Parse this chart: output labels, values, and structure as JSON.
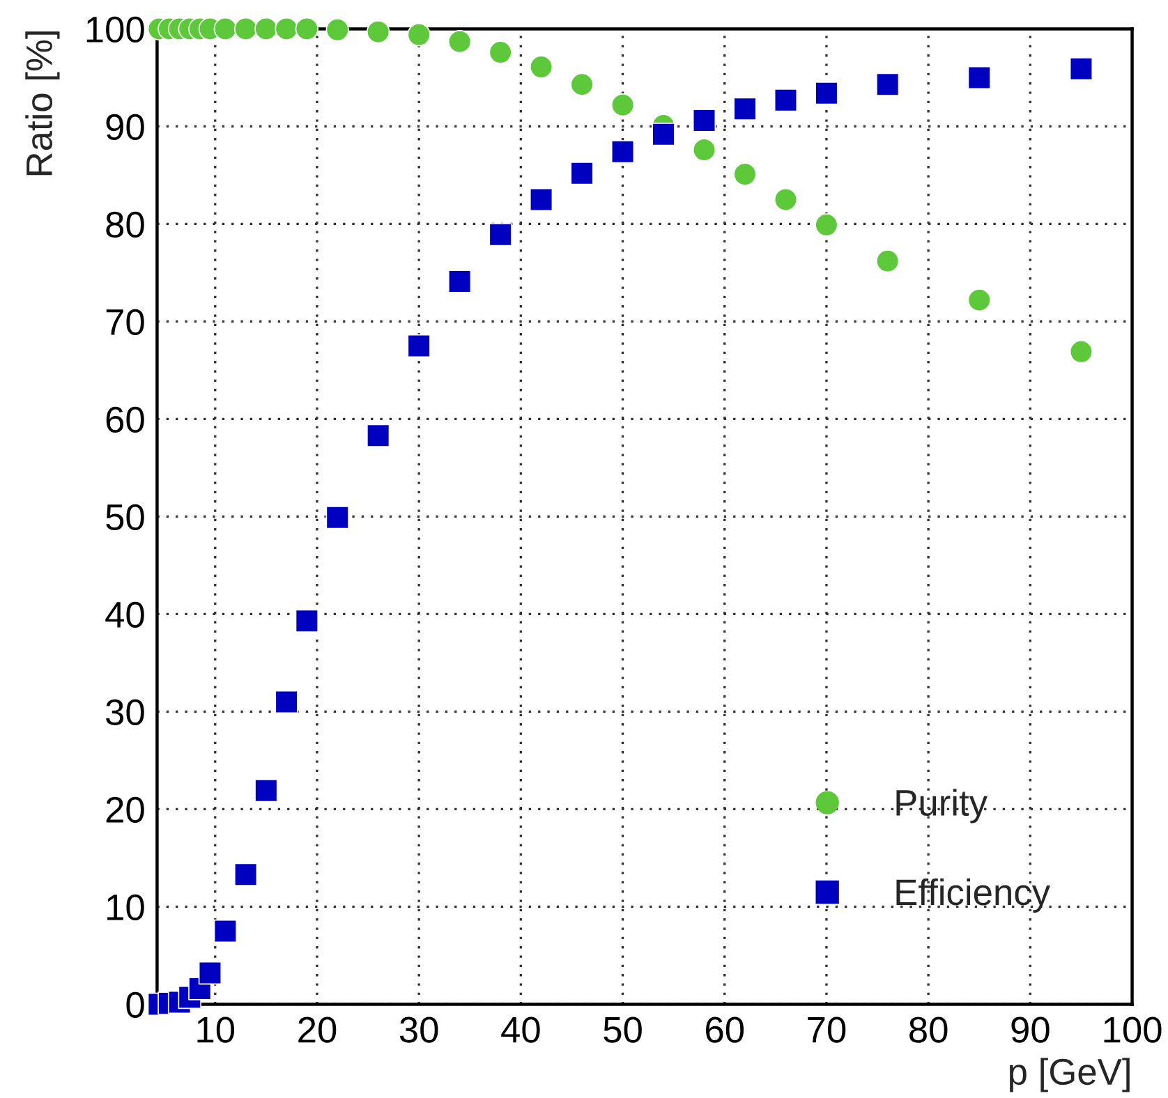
{
  "chart_data": {
    "type": "scatter",
    "xlabel": "p [GeV]",
    "ylabel": "Ratio [%]",
    "x": [
      4.5,
      5.5,
      6.5,
      7.5,
      8.5,
      9.5,
      11,
      13,
      15,
      17,
      19,
      22,
      26,
      30,
      34,
      38,
      42,
      46,
      50,
      54,
      58,
      62,
      66,
      70,
      76,
      85,
      95
    ],
    "series": [
      {
        "name": "Purity",
        "color": "#5ec83b",
        "marker": "circle",
        "values": [
          100,
          100,
          100,
          100,
          100,
          100,
          100,
          100,
          100,
          100,
          100,
          99.9,
          99.7,
          99.4,
          98.7,
          97.6,
          96.1,
          94.3,
          92.2,
          90.1,
          87.6,
          85.1,
          82.5,
          79.9,
          76.2,
          72.2,
          66.9
        ]
      },
      {
        "name": "Efficiency",
        "color": "#0000c0",
        "marker": "square",
        "values": [
          0,
          0.1,
          0.2,
          0.7,
          1.6,
          3.2,
          7.5,
          13.3,
          21.9,
          31,
          39.3,
          49.9,
          58.3,
          67.5,
          74.1,
          78.9,
          82.5,
          85.2,
          87.4,
          89.2,
          90.6,
          91.8,
          92.7,
          93.4,
          94.3,
          95.0,
          95.9
        ]
      }
    ],
    "xlim": [
      4.3,
      100
    ],
    "xticks": [
      10,
      20,
      30,
      40,
      50,
      60,
      70,
      80,
      90,
      100
    ],
    "ylim": [
      0,
      100
    ],
    "yticks": [
      0,
      10,
      20,
      30,
      40,
      50,
      60,
      70,
      80,
      90,
      100
    ],
    "grid": true,
    "legend": "bottom right"
  }
}
